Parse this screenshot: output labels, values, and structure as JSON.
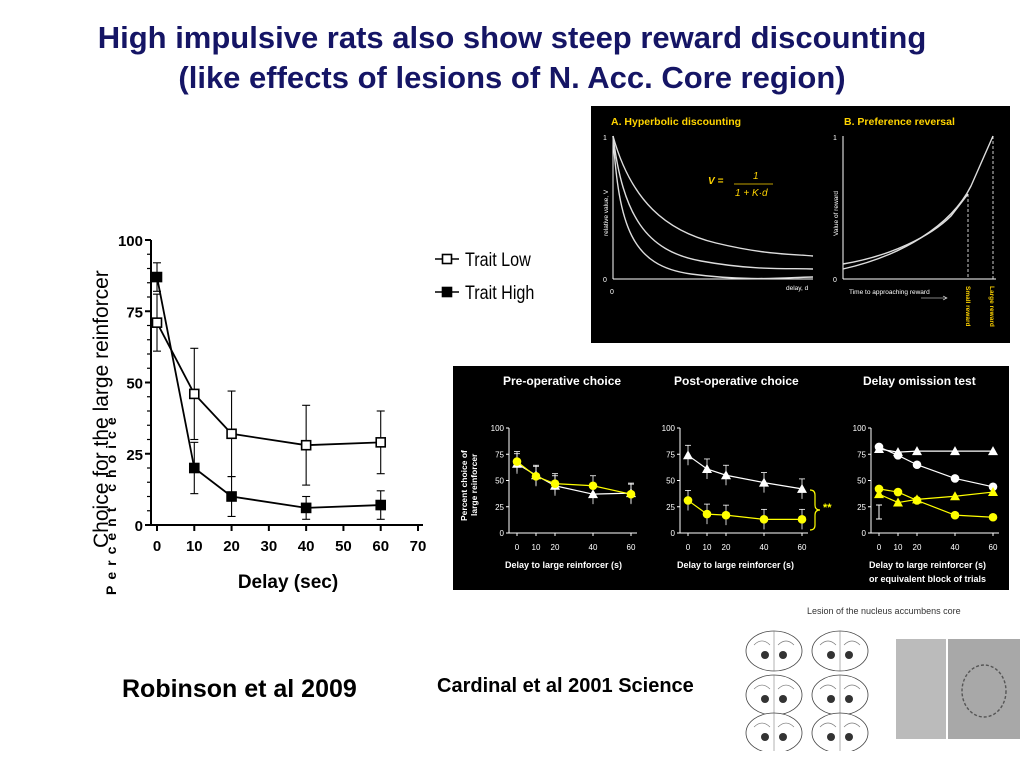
{
  "slide": {
    "title_line1": "High impulsive rats also show steep reward discounting",
    "title_line2": "(like effects of lesions of N. Acc. Core region)",
    "cite_left": "Robinson et al 2009",
    "cite_right": "Cardinal et al 2001 Science"
  },
  "colors": {
    "title": "#151565",
    "yellow_series": "#ffff00",
    "panel_bg": "#000000"
  },
  "chart_data": [
    {
      "type": "line",
      "ylabel": "Choice for the large reinforcer",
      "ylabel_overlay": "Percent choice",
      "xlabel": "Delay (sec)",
      "x_ticks": [
        "0",
        "10",
        "20",
        "30",
        "40",
        "50",
        "60",
        "70"
      ],
      "y_ticks": [
        "0",
        "25",
        "50",
        "75",
        "100"
      ],
      "xlim": [
        0,
        70
      ],
      "ylim": [
        0,
        100
      ],
      "legend": "top-right",
      "series": [
        {
          "name": "Trait Low",
          "marker": "open-square",
          "x": [
            0,
            10,
            20,
            40,
            60
          ],
          "y": [
            71,
            46,
            32,
            28,
            29
          ],
          "err": [
            10,
            16,
            15,
            14,
            11
          ]
        },
        {
          "name": "Trait High",
          "marker": "filled-square",
          "x": [
            0,
            10,
            20,
            40,
            60
          ],
          "y": [
            87,
            20,
            10,
            6,
            7
          ],
          "err": [
            5,
            9,
            7,
            4,
            5
          ]
        }
      ]
    },
    {
      "type": "line",
      "panel_title": "A. Hyperbolic discounting",
      "ylabel": "relative value, V",
      "xlabel": "delay, d",
      "formula_lhs": "V =",
      "formula_num": "1",
      "formula_den": "1 + K·d",
      "y_ticks": [
        "1",
        "0"
      ],
      "x_ticks": [
        "0"
      ]
    },
    {
      "type": "line",
      "panel_title": "B. Preference reversal",
      "ylabel": "Value of reward",
      "xlabel": "Time to approaching reward",
      "y_ticks": [
        "1",
        "0"
      ],
      "marker_labels": [
        "Small reward",
        "Large reward"
      ]
    },
    {
      "type": "line",
      "panel_title": "Pre-operative choice",
      "ylabel_line1": "Percent choice of",
      "ylabel_line2": "large reinforcer",
      "xlabel": "Delay to large reinforcer (s)",
      "x": [
        0,
        10,
        20,
        40,
        60
      ],
      "x_ticks": [
        "0",
        "10",
        "20",
        "40",
        "60"
      ],
      "y_ticks": [
        "0",
        "25",
        "50",
        "75",
        "100"
      ],
      "series": [
        {
          "marker": "triangle-white",
          "y": [
            66,
            55,
            45,
            37,
            38
          ]
        },
        {
          "marker": "circle-yellow",
          "y": [
            68,
            54,
            47,
            45,
            37
          ]
        }
      ]
    },
    {
      "type": "line",
      "panel_title": "Post-operative choice",
      "xlabel": "Delay to large reinforcer (s)",
      "x": [
        0,
        10,
        20,
        40,
        60
      ],
      "x_ticks": [
        "0",
        "10",
        "20",
        "40",
        "60"
      ],
      "y_ticks": [
        "0",
        "25",
        "50",
        "75",
        "100"
      ],
      "annotation": "**",
      "series": [
        {
          "marker": "triangle-white",
          "y": [
            74,
            61,
            55,
            48,
            42
          ]
        },
        {
          "marker": "circle-yellow",
          "y": [
            31,
            18,
            17,
            13,
            13
          ]
        }
      ]
    },
    {
      "type": "line",
      "panel_title": "Delay omission test",
      "xlabel_line1": "Delay to large reinforcer (s)",
      "xlabel_line2": "or equivalent block of trials",
      "x": [
        0,
        10,
        20,
        40,
        60
      ],
      "x_ticks": [
        "0",
        "10",
        "20",
        "40",
        "60"
      ],
      "y_ticks": [
        "0",
        "25",
        "50",
        "75",
        "100"
      ],
      "series": [
        {
          "marker": "circle-white",
          "y": [
            82,
            74,
            65,
            52,
            44
          ]
        },
        {
          "marker": "triangle-white",
          "y": [
            80,
            77,
            78,
            78,
            78
          ]
        },
        {
          "marker": "circle-yellow",
          "y": [
            42,
            39,
            31,
            17,
            15
          ]
        },
        {
          "marker": "triangle-yellow",
          "y": [
            37,
            29,
            32,
            35,
            39
          ]
        }
      ]
    }
  ],
  "brain_figure": {
    "caption": "Lesion of the nucleus accumbens core"
  }
}
